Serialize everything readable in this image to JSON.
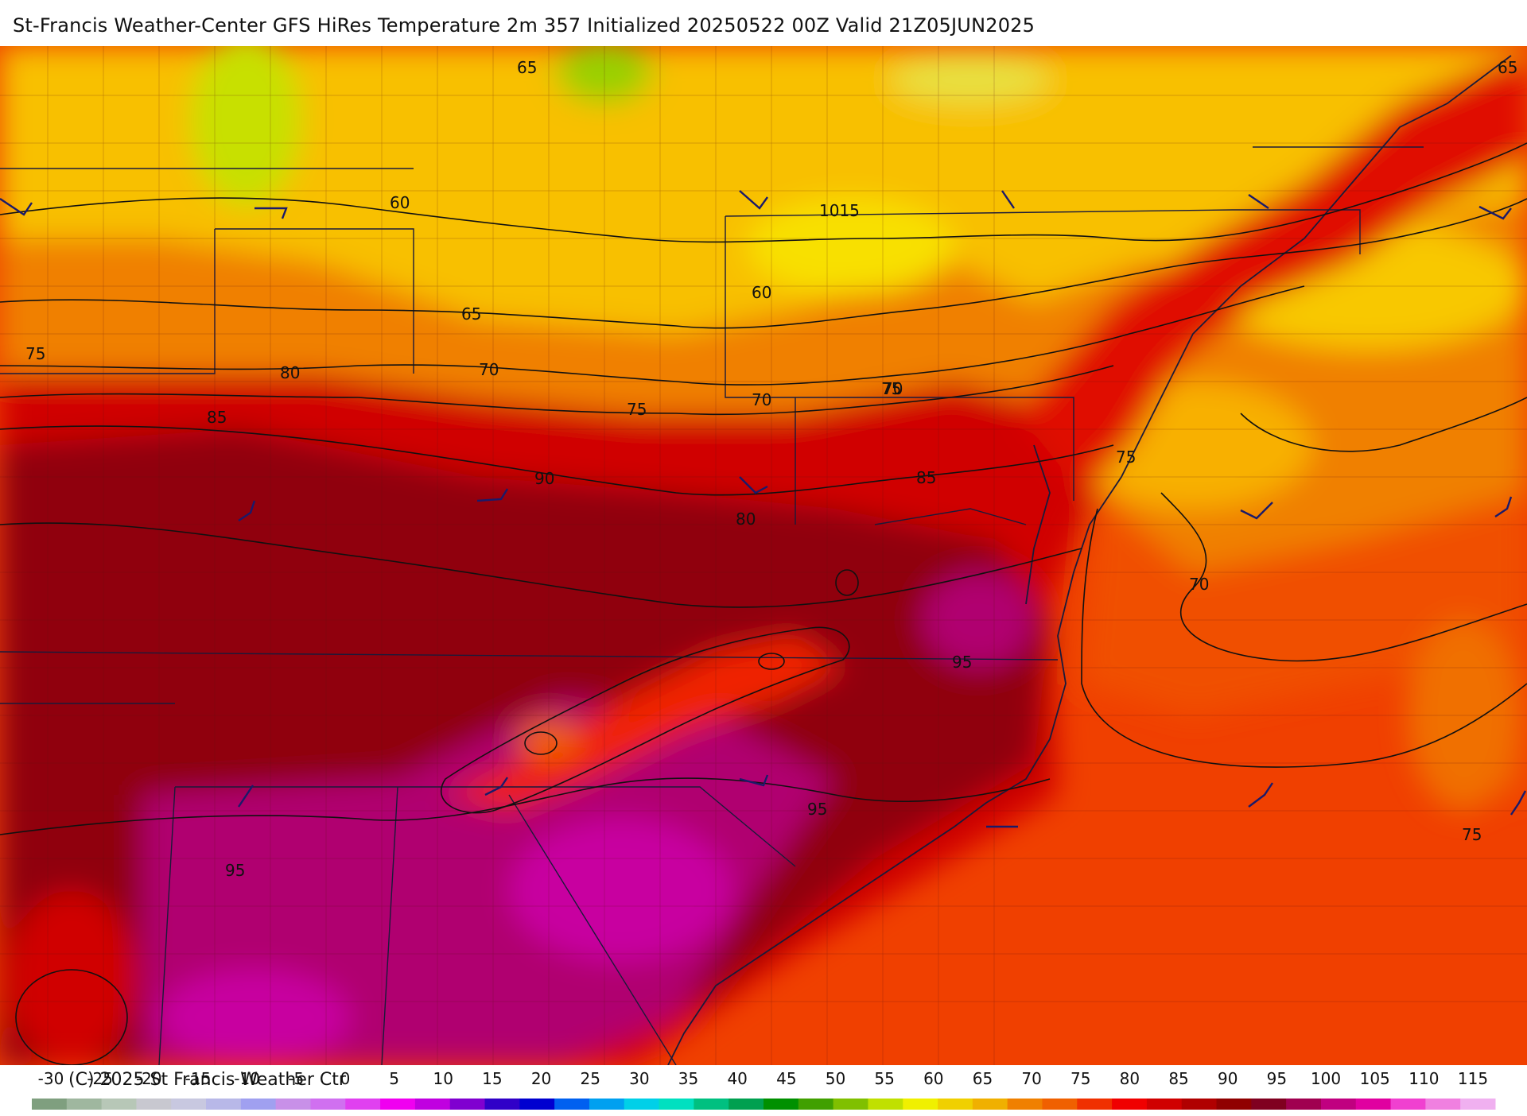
{
  "header": {
    "title": "St-Francis Weather-Center GFS HiRes Temperature 2m  357 Initialized 20250522 00Z Valid 21Z05JUN2025"
  },
  "map": {
    "isotherm_labels": [
      "65",
      "60",
      "60",
      "65",
      "70",
      "75",
      "80",
      "85",
      "70",
      "75",
      "70",
      "75",
      "90",
      "80",
      "85",
      "75",
      "70",
      "95",
      "95",
      "95",
      "75",
      "65"
    ],
    "pressure_label": "1015"
  },
  "legend": {
    "ticks": [
      "-30",
      "-25",
      "-20",
      "-15",
      "-10",
      "-5",
      "0",
      "5",
      "10",
      "15",
      "20",
      "25",
      "30",
      "35",
      "40",
      "45",
      "50",
      "55",
      "60",
      "65",
      "70",
      "75",
      "80",
      "85",
      "90",
      "95",
      "100",
      "105",
      "110",
      "115"
    ],
    "colors": [
      "#7f9f7f",
      "#9fb79f",
      "#b7c7b7",
      "#c8c8d0",
      "#c8c8e0",
      "#b8b8e8",
      "#a0a0f0",
      "#c890e8",
      "#d070f0",
      "#e040f0",
      "#f000f0",
      "#c000e0",
      "#8000d0",
      "#3000c8",
      "#0000d0",
      "#0060f0",
      "#00a0f0",
      "#00d0e8",
      "#00e0c0",
      "#00c080",
      "#00a050",
      "#009000",
      "#40a000",
      "#80c000",
      "#c0e000",
      "#f0f000",
      "#f0d000",
      "#f0b000",
      "#f08000",
      "#f06000",
      "#f03000",
      "#f00000",
      "#d00000",
      "#b00000",
      "#900000",
      "#800020",
      "#a00050",
      "#c00080",
      "#e000a0",
      "#f040d0",
      "#f080e0",
      "#f0b0f0"
    ],
    "copyright": "(C) 2025 St Francis Weather Ctr"
  }
}
